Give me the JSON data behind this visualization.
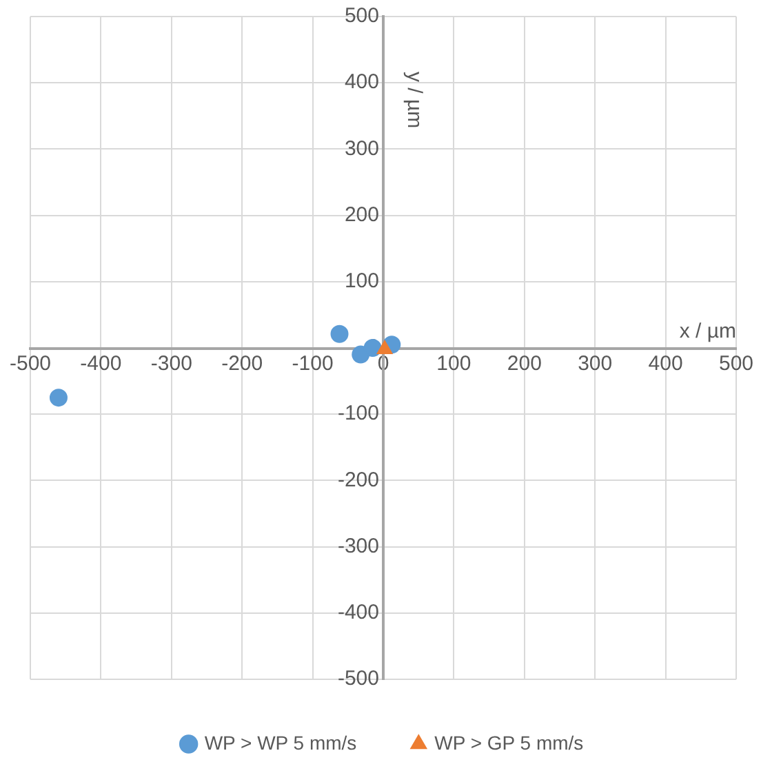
{
  "chart_data": {
    "type": "scatter",
    "xlabel": "x / µm",
    "ylabel": "y / µm",
    "xlim": [
      -500,
      500
    ],
    "xticks": [
      -500,
      -400,
      -300,
      -200,
      -100,
      0,
      100,
      200,
      300,
      400,
      500
    ],
    "ylim": [
      -500,
      500
    ],
    "yticks": [
      -500,
      -400,
      -300,
      -200,
      -100,
      0,
      100,
      200,
      300,
      400,
      500
    ],
    "grid": true,
    "legend": "bottom",
    "series": [
      {
        "name": "WP > WP 5 mm/s",
        "color": "#5b9bd5",
        "marker": "circle",
        "x": [
          -460,
          -62,
          -32,
          -15,
          12
        ],
        "values": [
          -75,
          21,
          -10,
          0,
          5
        ]
      },
      {
        "name": "WP > GP 5 mm/s",
        "color": "#ed7d31",
        "marker": "triangle",
        "x": [
          2
        ],
        "values": [
          -2
        ]
      }
    ]
  }
}
